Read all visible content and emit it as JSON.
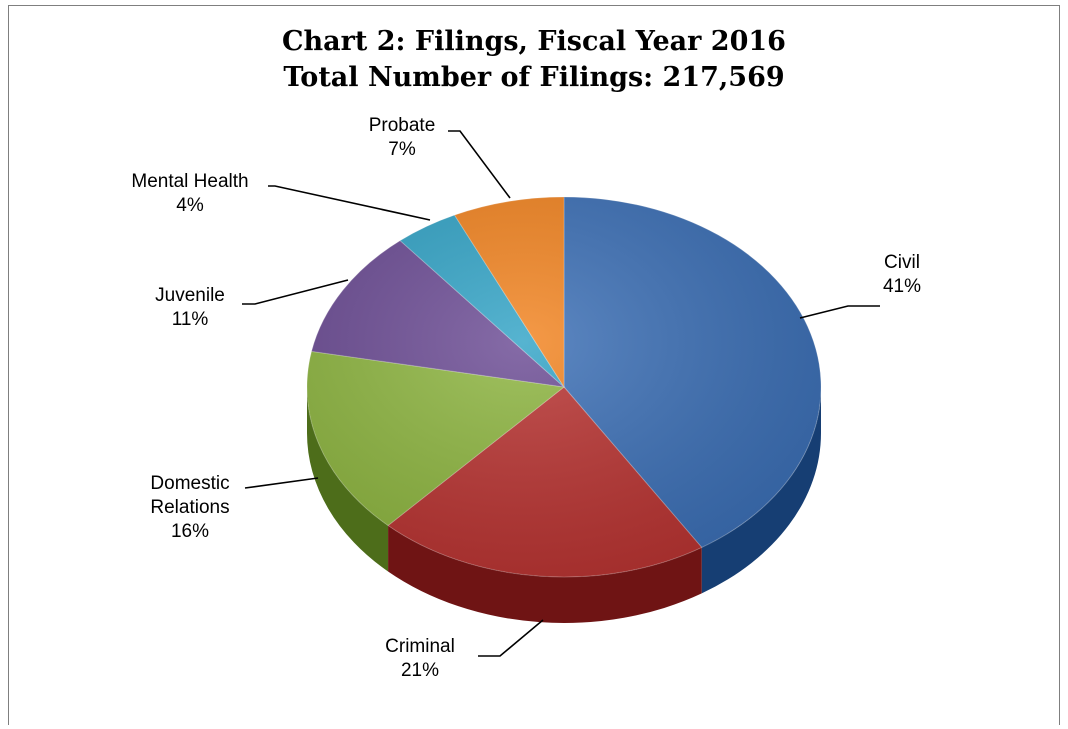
{
  "chart_data": {
    "type": "pie",
    "title": "Chart 2: Filings, Fiscal Year 2016",
    "subtitle": "Total Number of Filings: 217,569",
    "slices": [
      {
        "label": "Civil",
        "value": 41,
        "value_label": "41%",
        "color": "#3a6eb5",
        "side_color": "#163e73"
      },
      {
        "label": "Criminal",
        "value": 21,
        "value_label": "21%",
        "color": "#b83230",
        "side_color": "#6f1414"
      },
      {
        "label": "Domestic Relations",
        "label_lines": [
          "Domestic",
          "Relations"
        ],
        "value": 16,
        "value_label": "16%",
        "color": "#8db53f",
        "side_color": "#4d6d1a"
      },
      {
        "label": "Juvenile",
        "value": 11,
        "value_label": "11%",
        "color": "#6b4b94",
        "side_color": "#3d2a5a"
      },
      {
        "label": "Mental Health",
        "value": 4,
        "value_label": "4%",
        "color": "#31a3c6",
        "side_color": "#1a6278"
      },
      {
        "label": "Probate",
        "value": 7,
        "value_label": "7%",
        "color": "#f2831f",
        "side_color": "#9a4e0c"
      }
    ]
  }
}
